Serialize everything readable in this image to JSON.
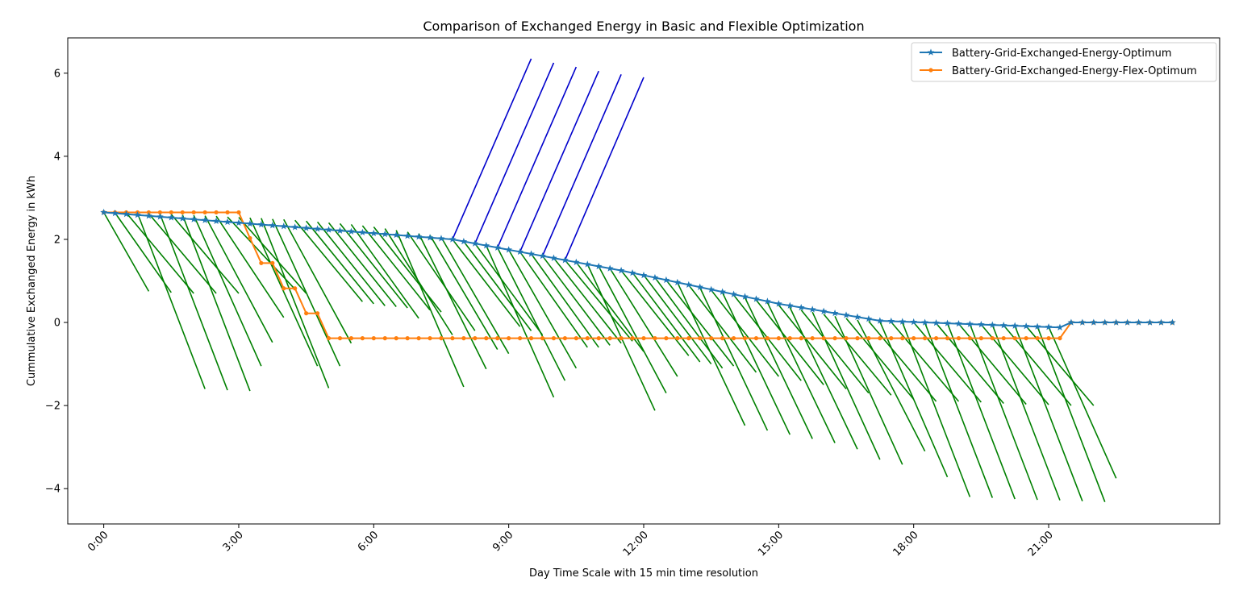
{
  "chart_data": {
    "type": "line",
    "title": "Comparison of Exchanged Energy in Basic and Flexible Optimization",
    "xlabel": "Day Time Scale with 15 min time resolution",
    "ylabel": "Cummulative Exchanged Energy in kWh",
    "xlim": [
      -0.8,
      24.8
    ],
    "ylim": [
      -4.85,
      6.85
    ],
    "xticks": [
      {
        "value": 0,
        "label": "0:00"
      },
      {
        "value": 3,
        "label": "3:00"
      },
      {
        "value": 6,
        "label": "6:00"
      },
      {
        "value": 9,
        "label": "9:00"
      },
      {
        "value": 12,
        "label": "12:00"
      },
      {
        "value": 15,
        "label": "15:00"
      },
      {
        "value": 18,
        "label": "18:00"
      },
      {
        "value": 21,
        "label": "21:00"
      }
    ],
    "yticks": [
      {
        "value": -4,
        "label": "−4"
      },
      {
        "value": -2,
        "label": "−2"
      },
      {
        "value": 0,
        "label": "0"
      },
      {
        "value": 2,
        "label": "2"
      },
      {
        "value": 4,
        "label": "4"
      },
      {
        "value": 6,
        "label": "6"
      }
    ],
    "grid": false,
    "legend_position": "top-right",
    "series": [
      {
        "name": "Battery-Grid-Exchanged-Energy-Optimum",
        "color": "#1f77b4",
        "marker": "star",
        "segments": [
          [
            0,
            2.65
          ],
          [
            7.75,
            2.0
          ],
          [
            11.5,
            1.25
          ],
          [
            15,
            0.45
          ],
          [
            17.25,
            0.04
          ],
          [
            20,
            -0.07
          ],
          [
            21.25,
            -0.12
          ],
          [
            21.5,
            0.0
          ],
          [
            23.75,
            0.0
          ]
        ]
      },
      {
        "name": "Battery-Grid-Exchanged-Energy-Flex-Optimum",
        "color": "#ff7f0e",
        "marker": "circle",
        "points": [
          [
            0,
            2.65
          ],
          [
            0.25,
            2.65
          ],
          [
            0.5,
            2.65
          ],
          [
            0.75,
            2.65
          ],
          [
            1,
            2.65
          ],
          [
            1.25,
            2.65
          ],
          [
            1.5,
            2.65
          ],
          [
            1.75,
            2.65
          ],
          [
            2,
            2.65
          ],
          [
            2.25,
            2.65
          ],
          [
            2.5,
            2.65
          ],
          [
            2.75,
            2.65
          ],
          [
            3,
            2.65
          ],
          [
            3.25,
            2.03
          ],
          [
            3.5,
            1.43
          ],
          [
            3.75,
            1.43
          ],
          [
            4,
            0.82
          ],
          [
            4.25,
            0.82
          ],
          [
            4.5,
            0.22
          ],
          [
            4.75,
            0.22
          ],
          [
            5,
            -0.38
          ]
        ],
        "flat_from": 5,
        "flat_to": 21.25,
        "flat_value": -0.38,
        "tail": [
          [
            21.5,
            0.0
          ],
          [
            23.75,
            0.0
          ]
        ]
      }
    ],
    "annotations": {
      "green_color": "#008000",
      "blue_color": "#0000cc",
      "green_end_offsets": [
        [
          0,
          2.65,
          1.0,
          0.75
        ],
        [
          0.25,
          2.64,
          1.5,
          0.72
        ],
        [
          0.5,
          2.64,
          2.0,
          0.7
        ],
        [
          0.75,
          2.63,
          2.25,
          -1.6
        ],
        [
          1,
          2.62,
          2.5,
          0.7
        ],
        [
          1.25,
          2.61,
          2.75,
          -1.63
        ],
        [
          1.5,
          2.6,
          3.0,
          0.7
        ],
        [
          1.75,
          2.59,
          3.25,
          -1.65
        ],
        [
          2,
          2.58,
          3.5,
          -1.05
        ],
        [
          2.25,
          2.57,
          3.75,
          -0.48
        ],
        [
          2.5,
          2.56,
          4.0,
          0.12
        ],
        [
          2.75,
          2.54,
          4.25,
          0.8
        ],
        [
          3,
          2.53,
          4.5,
          0.7
        ],
        [
          3.25,
          2.52,
          4.75,
          -1.05
        ],
        [
          3.5,
          2.51,
          5.0,
          -1.58
        ],
        [
          3.75,
          2.49,
          5.25,
          -1.05
        ],
        [
          4,
          2.48,
          5.5,
          -0.5
        ],
        [
          4.25,
          2.46,
          5.75,
          0.5
        ],
        [
          4.5,
          2.44,
          6.0,
          0.45
        ],
        [
          4.75,
          2.42,
          6.25,
          0.4
        ],
        [
          5,
          2.4,
          6.5,
          0.38
        ],
        [
          5.25,
          2.38,
          6.75,
          0.35
        ],
        [
          5.5,
          2.36,
          7.0,
          0.1
        ],
        [
          5.75,
          2.33,
          7.25,
          0.3
        ],
        [
          6,
          2.3,
          7.5,
          0.25
        ],
        [
          6.25,
          2.26,
          7.75,
          -0.3
        ],
        [
          6.5,
          2.22,
          8.0,
          -1.55
        ],
        [
          6.75,
          2.18,
          8.25,
          -0.2
        ],
        [
          7,
          2.14,
          8.5,
          -1.12
        ],
        [
          7.25,
          2.1,
          8.75,
          -0.65
        ],
        [
          7.5,
          2.05,
          9.0,
          -0.75
        ],
        [
          7.75,
          2.0,
          9.25,
          -0.1
        ],
        [
          8,
          1.95,
          9.5,
          -0.2
        ],
        [
          8.25,
          1.9,
          9.75,
          -0.3
        ],
        [
          8.5,
          1.85,
          10.0,
          -1.8
        ],
        [
          8.75,
          1.8,
          10.25,
          -1.4
        ],
        [
          9,
          1.75,
          10.5,
          -1.1
        ],
        [
          9.25,
          1.7,
          10.75,
          -0.6
        ],
        [
          9.5,
          1.65,
          11.0,
          -0.6
        ],
        [
          9.75,
          1.6,
          11.25,
          -0.55
        ],
        [
          10,
          1.55,
          11.5,
          -0.5
        ],
        [
          10.25,
          1.5,
          11.75,
          -0.45
        ],
        [
          10.5,
          1.45,
          12.0,
          -0.7
        ],
        [
          10.75,
          1.4,
          12.25,
          -2.12
        ],
        [
          11,
          1.35,
          12.5,
          -1.7
        ],
        [
          11.25,
          1.3,
          12.75,
          -1.3
        ],
        [
          11.5,
          1.25,
          13.0,
          -0.8
        ],
        [
          11.75,
          1.2,
          13.25,
          -0.95
        ],
        [
          12,
          1.14,
          13.5,
          -1.0
        ],
        [
          12.25,
          1.08,
          13.75,
          -1.1
        ],
        [
          12.5,
          1.02,
          14.0,
          -1.05
        ],
        [
          12.75,
          0.96,
          14.25,
          -2.48
        ],
        [
          13,
          0.9,
          14.5,
          -1.2
        ],
        [
          13.25,
          0.84,
          14.75,
          -2.6
        ],
        [
          13.5,
          0.78,
          15.0,
          -1.3
        ],
        [
          13.75,
          0.72,
          15.25,
          -2.7
        ],
        [
          14,
          0.66,
          15.5,
          -1.4
        ],
        [
          14.25,
          0.6,
          15.75,
          -2.8
        ],
        [
          14.5,
          0.54,
          16.0,
          -1.5
        ],
        [
          14.75,
          0.48,
          16.25,
          -2.9
        ],
        [
          15,
          0.42,
          16.5,
          -1.6
        ],
        [
          15.25,
          0.36,
          16.75,
          -3.05
        ],
        [
          15.5,
          0.3,
          17.0,
          -1.7
        ],
        [
          15.75,
          0.25,
          17.25,
          -3.3
        ],
        [
          16,
          0.2,
          17.5,
          -1.75
        ],
        [
          16.25,
          0.15,
          17.75,
          -3.42
        ],
        [
          16.5,
          0.1,
          18.0,
          -1.85
        ],
        [
          16.75,
          0.06,
          18.25,
          -3.1
        ],
        [
          17,
          0.03,
          18.5,
          -1.9
        ],
        [
          17.25,
          0.02,
          18.75,
          -3.72
        ],
        [
          17.5,
          0.01,
          19.0,
          -1.9
        ],
        [
          17.75,
          0.0,
          19.25,
          -4.2
        ],
        [
          18,
          0.0,
          19.5,
          -1.92
        ],
        [
          18.25,
          -0.01,
          19.75,
          -4.22
        ],
        [
          18.5,
          -0.02,
          20.0,
          -1.95
        ],
        [
          18.75,
          -0.02,
          20.25,
          -4.25
        ],
        [
          19,
          -0.03,
          20.5,
          -1.97
        ],
        [
          19.25,
          -0.04,
          20.75,
          -4.27
        ],
        [
          19.5,
          -0.05,
          21.0,
          -1.98
        ],
        [
          19.75,
          -0.06,
          21.25,
          -4.28
        ],
        [
          20,
          -0.07,
          21.5,
          -2.0
        ],
        [
          20.25,
          -0.08,
          21.75,
          -4.3
        ],
        [
          20.5,
          -0.09,
          22.0,
          -2.0
        ],
        [
          20.75,
          -0.1,
          22.25,
          -4.32
        ],
        [
          21,
          -0.11,
          22.5,
          -3.75
        ]
      ],
      "blue_lines": [
        [
          7.75,
          2.0,
          9.5,
          6.35
        ],
        [
          8.25,
          1.9,
          10.0,
          6.25
        ],
        [
          8.75,
          1.8,
          10.5,
          6.15
        ],
        [
          9.25,
          1.7,
          11.0,
          6.05
        ],
        [
          9.75,
          1.6,
          11.5,
          5.97
        ],
        [
          10.25,
          1.5,
          12.0,
          5.9
        ]
      ]
    }
  }
}
